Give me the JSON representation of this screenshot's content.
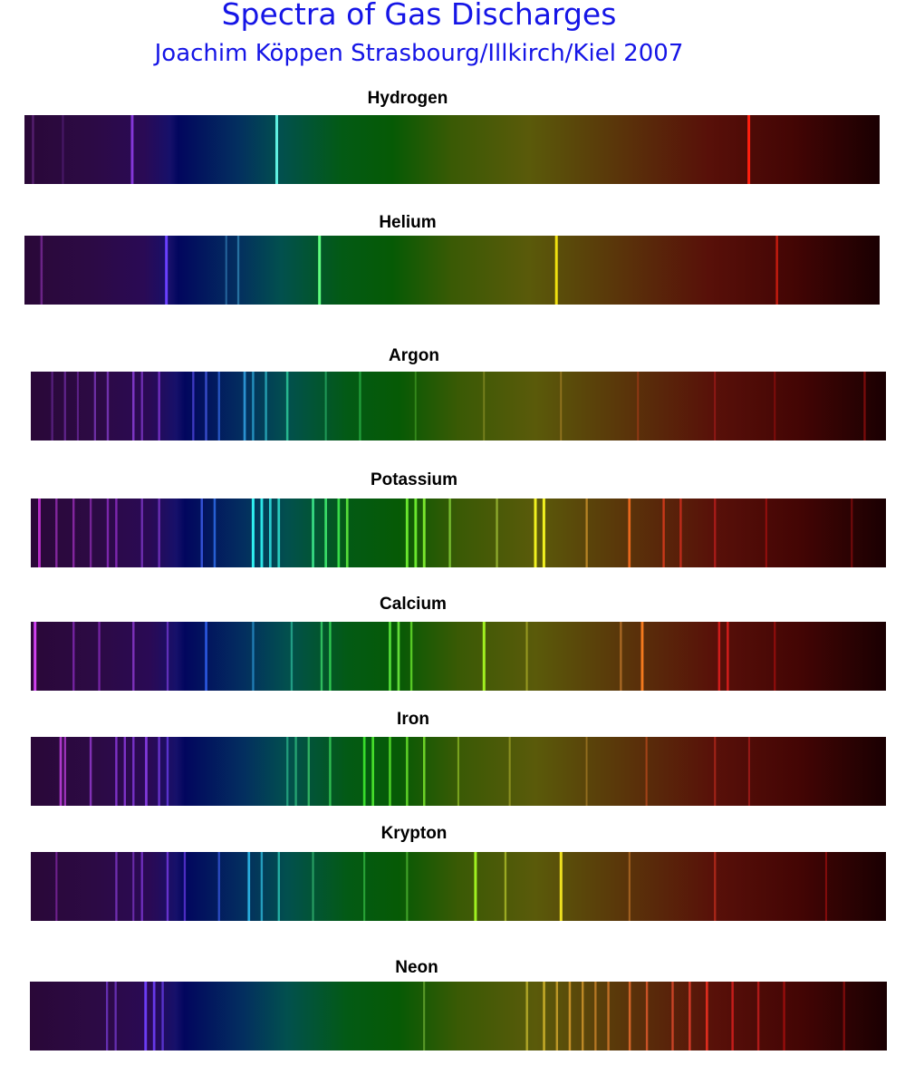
{
  "header": {
    "title": "Spectra of Gas Discharges",
    "subtitle": "Joachim Köppen Strasbourg/Illkirch/Kiel 2007"
  },
  "spectra": [
    {
      "name": "Hydrogen",
      "lines": [
        [
          0.01,
          "#6a2a8a",
          0.5
        ],
        [
          0.045,
          "#5a2080",
          0.4
        ],
        [
          0.126,
          "#8a3ae0",
          0.9
        ],
        [
          0.295,
          "#60f0e0",
          1
        ],
        [
          0.847,
          "#ff2010",
          1
        ]
      ]
    },
    {
      "name": "Helium",
      "lines": [
        [
          0.02,
          "#7a2a9a",
          0.7
        ],
        [
          0.166,
          "#6a40ff",
          1
        ],
        [
          0.236,
          "#3a8ac0",
          0.4
        ],
        [
          0.25,
          "#3a90c0",
          0.5
        ],
        [
          0.345,
          "#60ff80",
          1
        ],
        [
          0.622,
          "#f0e010",
          1
        ],
        [
          0.88,
          "#e02010",
          0.7
        ]
      ]
    },
    {
      "name": "Argon",
      "lines": [
        [
          0.025,
          "#6a2a9a",
          0.5
        ],
        [
          0.04,
          "#7a30b0",
          0.5
        ],
        [
          0.055,
          "#7a30b0",
          0.4
        ],
        [
          0.075,
          "#8a40d0",
          0.5
        ],
        [
          0.09,
          "#8a40d0",
          0.6
        ],
        [
          0.12,
          "#9040e0",
          0.7
        ],
        [
          0.13,
          "#9040e0",
          0.5
        ],
        [
          0.15,
          "#9a40f0",
          0.5
        ],
        [
          0.19,
          "#5a50f0",
          0.5
        ],
        [
          0.205,
          "#4a60f0",
          0.6
        ],
        [
          0.22,
          "#3a70f0",
          0.5
        ],
        [
          0.25,
          "#30a0e0",
          0.8
        ],
        [
          0.26,
          "#30b0e0",
          0.6
        ],
        [
          0.275,
          "#30c0d0",
          0.6
        ],
        [
          0.3,
          "#30d0a0",
          0.7
        ],
        [
          0.345,
          "#30c070",
          0.4
        ],
        [
          0.385,
          "#30c050",
          0.5
        ],
        [
          0.45,
          "#50b030",
          0.3
        ],
        [
          0.53,
          "#a0a030",
          0.3
        ],
        [
          0.62,
          "#c09030",
          0.3
        ],
        [
          0.71,
          "#c04020",
          0.3
        ],
        [
          0.8,
          "#c02020",
          0.3
        ],
        [
          0.87,
          "#b01010",
          0.3
        ],
        [
          0.975,
          "#a01010",
          0.5
        ]
      ]
    },
    {
      "name": "Potassium",
      "lines": [
        [
          0.01,
          "#c030d0",
          0.9
        ],
        [
          0.03,
          "#a030c0",
          0.6
        ],
        [
          0.05,
          "#a030c0",
          0.6
        ],
        [
          0.07,
          "#9a30c0",
          0.5
        ],
        [
          0.09,
          "#9a30d0",
          0.6
        ],
        [
          0.1,
          "#9a30d0",
          0.6
        ],
        [
          0.13,
          "#9040e0",
          0.5
        ],
        [
          0.15,
          "#9040e0",
          0.5
        ],
        [
          0.2,
          "#4060f0",
          0.7
        ],
        [
          0.215,
          "#3070f0",
          0.7
        ],
        [
          0.26,
          "#30f0f0",
          1
        ],
        [
          0.27,
          "#30f0f0",
          0.9
        ],
        [
          0.28,
          "#30e0e0",
          0.8
        ],
        [
          0.29,
          "#30e0d0",
          0.8
        ],
        [
          0.33,
          "#40f090",
          0.8
        ],
        [
          0.345,
          "#40f070",
          0.8
        ],
        [
          0.36,
          "#40f050",
          0.8
        ],
        [
          0.37,
          "#60f040",
          0.8
        ],
        [
          0.44,
          "#70f030",
          0.9
        ],
        [
          0.45,
          "#70f030",
          0.9
        ],
        [
          0.46,
          "#80f030",
          0.9
        ],
        [
          0.49,
          "#90e040",
          0.6
        ],
        [
          0.545,
          "#b0d040",
          0.5
        ],
        [
          0.59,
          "#f0f020",
          1
        ],
        [
          0.6,
          "#f0f020",
          1
        ],
        [
          0.65,
          "#e0a030",
          0.5
        ],
        [
          0.7,
          "#ff7020",
          0.8
        ],
        [
          0.74,
          "#f04020",
          0.6
        ],
        [
          0.76,
          "#e03020",
          0.6
        ],
        [
          0.8,
          "#d02020",
          0.5
        ],
        [
          0.86,
          "#c01010",
          0.4
        ],
        [
          0.96,
          "#a01010",
          0.4
        ]
      ]
    },
    {
      "name": "Calcium",
      "lines": [
        [
          0.005,
          "#d040f0",
          1
        ],
        [
          0.05,
          "#9a30d0",
          0.5
        ],
        [
          0.08,
          "#9a30d0",
          0.5
        ],
        [
          0.12,
          "#9a40e0",
          0.6
        ],
        [
          0.16,
          "#8040e0",
          0.5
        ],
        [
          0.205,
          "#3060f0",
          0.8
        ],
        [
          0.26,
          "#30a0e0",
          0.5
        ],
        [
          0.305,
          "#30c0a0",
          0.5
        ],
        [
          0.34,
          "#40e070",
          0.6
        ],
        [
          0.35,
          "#40f060",
          0.6
        ],
        [
          0.42,
          "#60f040",
          0.8
        ],
        [
          0.43,
          "#70f040",
          0.8
        ],
        [
          0.445,
          "#70f030",
          0.6
        ],
        [
          0.53,
          "#a0f020",
          1
        ],
        [
          0.58,
          "#c0c030",
          0.4
        ],
        [
          0.69,
          "#d08030",
          0.5
        ],
        [
          0.715,
          "#ff8020",
          0.9
        ],
        [
          0.805,
          "#f02020",
          0.7
        ],
        [
          0.815,
          "#f02020",
          0.7
        ],
        [
          0.87,
          "#c01010",
          0.4
        ]
      ]
    },
    {
      "name": "Iron",
      "lines": [
        [
          0.035,
          "#c040e0",
          0.8
        ],
        [
          0.04,
          "#c040e0",
          0.6
        ],
        [
          0.07,
          "#a040e0",
          0.6
        ],
        [
          0.1,
          "#9a40f0",
          0.6
        ],
        [
          0.11,
          "#9a40f0",
          0.6
        ],
        [
          0.12,
          "#9040f0",
          0.6
        ],
        [
          0.135,
          "#9040f0",
          0.8
        ],
        [
          0.15,
          "#8040f0",
          0.6
        ],
        [
          0.16,
          "#7040f0",
          0.6
        ],
        [
          0.3,
          "#30c090",
          0.5
        ],
        [
          0.31,
          "#30c080",
          0.6
        ],
        [
          0.325,
          "#40d070",
          0.6
        ],
        [
          0.35,
          "#40e060",
          0.6
        ],
        [
          0.39,
          "#40f030",
          0.8
        ],
        [
          0.4,
          "#50f030",
          0.8
        ],
        [
          0.42,
          "#60f030",
          0.7
        ],
        [
          0.44,
          "#70f030",
          0.7
        ],
        [
          0.46,
          "#80f030",
          0.7
        ],
        [
          0.5,
          "#a0d030",
          0.4
        ],
        [
          0.56,
          "#b0b030",
          0.4
        ],
        [
          0.65,
          "#c09030",
          0.3
        ],
        [
          0.72,
          "#d05020",
          0.4
        ],
        [
          0.8,
          "#d03020",
          0.4
        ],
        [
          0.84,
          "#c02020",
          0.4
        ]
      ]
    },
    {
      "name": "Krypton",
      "lines": [
        [
          0.03,
          "#9a30c0",
          0.4
        ],
        [
          0.1,
          "#9040e0",
          0.5
        ],
        [
          0.12,
          "#9040e0",
          0.4
        ],
        [
          0.13,
          "#9040f0",
          0.5
        ],
        [
          0.16,
          "#8040f0",
          0.6
        ],
        [
          0.18,
          "#7040f0",
          0.5
        ],
        [
          0.22,
          "#4060f0",
          0.5
        ],
        [
          0.255,
          "#30c0f0",
          0.8
        ],
        [
          0.27,
          "#30c0e0",
          0.6
        ],
        [
          0.29,
          "#30d0c0",
          0.6
        ],
        [
          0.33,
          "#40d080",
          0.4
        ],
        [
          0.39,
          "#40d050",
          0.4
        ],
        [
          0.44,
          "#60d040",
          0.4
        ],
        [
          0.52,
          "#a0f020",
          1
        ],
        [
          0.555,
          "#c0d030",
          0.5
        ],
        [
          0.62,
          "#f0e020",
          1
        ],
        [
          0.7,
          "#d08030",
          0.4
        ],
        [
          0.8,
          "#d03020",
          0.5
        ],
        [
          0.93,
          "#b01010",
          0.4
        ]
      ]
    },
    {
      "name": "Neon",
      "lines": [
        [
          0.09,
          "#8040e0",
          0.5
        ],
        [
          0.1,
          "#8040e0",
          0.5
        ],
        [
          0.135,
          "#7040ff",
          0.9
        ],
        [
          0.145,
          "#7040ff",
          0.8
        ],
        [
          0.155,
          "#6a40f0",
          0.6
        ],
        [
          0.46,
          "#80c040",
          0.4
        ],
        [
          0.58,
          "#d0c030",
          0.6
        ],
        [
          0.6,
          "#e0c030",
          0.7
        ],
        [
          0.615,
          "#e0b030",
          0.6
        ],
        [
          0.63,
          "#e0a030",
          0.7
        ],
        [
          0.645,
          "#e0a030",
          0.6
        ],
        [
          0.66,
          "#e09030",
          0.5
        ],
        [
          0.675,
          "#e08030",
          0.6
        ],
        [
          0.7,
          "#f07030",
          0.7
        ],
        [
          0.72,
          "#f06030",
          0.6
        ],
        [
          0.75,
          "#f05030",
          0.6
        ],
        [
          0.77,
          "#f04030",
          0.7
        ],
        [
          0.79,
          "#f03020",
          0.8
        ],
        [
          0.82,
          "#e02020",
          0.7
        ],
        [
          0.85,
          "#d02020",
          0.6
        ],
        [
          0.88,
          "#c01010",
          0.5
        ],
        [
          0.95,
          "#a01010",
          0.5
        ]
      ]
    }
  ]
}
